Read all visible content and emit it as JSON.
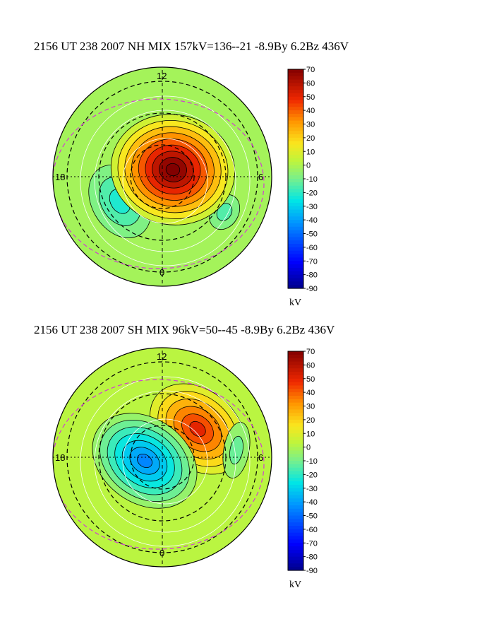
{
  "chart_data": [
    {
      "type": "heatmap",
      "hemisphere": "NH",
      "title": "2156 UT 238 2007 NH MIX 157kV=136--21 -8.9By  6.2Bz 436V",
      "clock_labels": {
        "top": "12",
        "left": "18",
        "right": "6",
        "bottom": "0"
      },
      "colorbar": {
        "unit": "kV",
        "ticks": [
          70,
          60,
          50,
          40,
          30,
          20,
          10,
          0,
          -10,
          -20,
          -30,
          -40,
          -50,
          -60,
          -70,
          -80,
          -90
        ],
        "range": [
          -90,
          70
        ]
      },
      "potential_max_kV": 136,
      "potential_min_kV": -21,
      "cross_polar_cap_kV": 157
    },
    {
      "type": "heatmap",
      "hemisphere": "SH",
      "title": "2156 UT 238 2007 SH MIX 96kV=50--45 -8.9By  6.2Bz 436V",
      "clock_labels": {
        "top": "12",
        "left": "18",
        "right": "6",
        "bottom": "0"
      },
      "colorbar": {
        "unit": "kV",
        "ticks": [
          70,
          60,
          50,
          40,
          30,
          20,
          10,
          0,
          -10,
          -20,
          -30,
          -40,
          -50,
          -60,
          -70,
          -80,
          -90
        ],
        "range": [
          -90,
          70
        ]
      },
      "potential_max_kV": 50,
      "potential_min_kV": -45,
      "cross_polar_cap_kV": 96
    }
  ],
  "colors": {
    "background_field": "#b6f04a",
    "grid_dashed": "#000000",
    "boundary_dashed": "#d040d0",
    "contour": "#000000"
  }
}
